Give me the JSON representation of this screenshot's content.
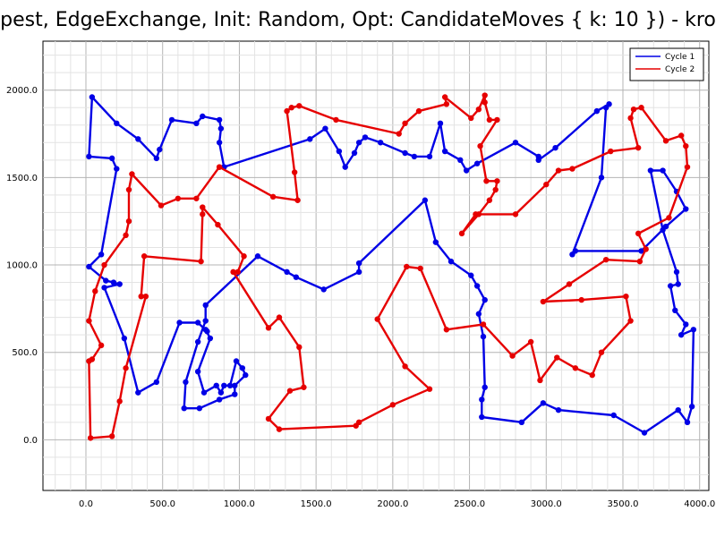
{
  "chart_data": {
    "type": "line",
    "title": "epest, EdgeExchange, Init: Random, Opt: CandidateMoves { k: 10 }) - kroa",
    "xlabel": "",
    "ylabel": "",
    "xlim": [
      -280,
      4060
    ],
    "ylim": [
      -290,
      2280
    ],
    "xticks": [
      0,
      500,
      1000,
      1500,
      2000,
      2500,
      3000,
      3500,
      4000
    ],
    "yticks": [
      0,
      500,
      1000,
      1500,
      2000
    ],
    "xtick_labels": [
      "0.0",
      "500.0",
      "1000.0",
      "1500.0",
      "2000.0",
      "2500.0",
      "3000.0",
      "3500.0",
      "4000.0"
    ],
    "ytick_labels": [
      "0.0",
      "500.0",
      "1000.0",
      "1500.0",
      "2000.0"
    ],
    "grid": true,
    "legend_position": "top-right",
    "series": [
      {
        "name": "Cycle 1",
        "color": "#0000e6",
        "closed": true,
        "points": [
          [
            900,
            1560
          ],
          [
            870,
            1700
          ],
          [
            880,
            1780
          ],
          [
            870,
            1830
          ],
          [
            760,
            1850
          ],
          [
            720,
            1810
          ],
          [
            560,
            1830
          ],
          [
            480,
            1660
          ],
          [
            460,
            1610
          ],
          [
            340,
            1720
          ],
          [
            200,
            1810
          ],
          [
            40,
            1960
          ],
          [
            20,
            1620
          ],
          [
            170,
            1610
          ],
          [
            200,
            1550
          ],
          [
            100,
            1060
          ],
          [
            20,
            990
          ],
          [
            130,
            910
          ],
          [
            180,
            900
          ],
          [
            220,
            890
          ],
          [
            120,
            870
          ],
          [
            250,
            580
          ],
          [
            340,
            270
          ],
          [
            460,
            330
          ],
          [
            610,
            670
          ],
          [
            730,
            670
          ],
          [
            790,
            620
          ],
          [
            780,
            630
          ],
          [
            810,
            580
          ],
          [
            730,
            390
          ],
          [
            770,
            270
          ],
          [
            850,
            310
          ],
          [
            880,
            270
          ],
          [
            900,
            310
          ],
          [
            940,
            310
          ],
          [
            980,
            450
          ],
          [
            1020,
            410
          ],
          [
            1040,
            370
          ],
          [
            970,
            310
          ],
          [
            970,
            260
          ],
          [
            870,
            230
          ],
          [
            740,
            180
          ],
          [
            640,
            180
          ],
          [
            650,
            330
          ],
          [
            730,
            560
          ],
          [
            780,
            680
          ],
          [
            780,
            770
          ],
          [
            1120,
            1050
          ],
          [
            1310,
            960
          ],
          [
            1370,
            930
          ],
          [
            1550,
            860
          ],
          [
            1780,
            960
          ],
          [
            1780,
            1010
          ],
          [
            2210,
            1370
          ],
          [
            2280,
            1130
          ],
          [
            2380,
            1020
          ],
          [
            2510,
            940
          ],
          [
            2550,
            880
          ],
          [
            2600,
            800
          ],
          [
            2560,
            720
          ],
          [
            2590,
            590
          ],
          [
            2600,
            300
          ],
          [
            2580,
            230
          ],
          [
            2580,
            130
          ],
          [
            2840,
            100
          ],
          [
            2980,
            210
          ],
          [
            3080,
            170
          ],
          [
            3440,
            140
          ],
          [
            3640,
            40
          ],
          [
            3860,
            170
          ],
          [
            3920,
            100
          ],
          [
            3950,
            190
          ],
          [
            3960,
            630
          ],
          [
            3880,
            600
          ],
          [
            3910,
            660
          ],
          [
            3840,
            740
          ],
          [
            3810,
            880
          ],
          [
            3860,
            890
          ],
          [
            3850,
            960
          ],
          [
            3760,
            1200
          ],
          [
            3680,
            1540
          ],
          [
            3760,
            1540
          ],
          [
            3850,
            1420
          ],
          [
            3910,
            1320
          ],
          [
            3780,
            1220
          ],
          [
            3620,
            1080
          ],
          [
            3190,
            1080
          ],
          [
            3170,
            1060
          ],
          [
            3360,
            1500
          ],
          [
            3390,
            1900
          ],
          [
            3410,
            1920
          ],
          [
            3330,
            1880
          ],
          [
            3060,
            1670
          ],
          [
            2950,
            1600
          ],
          [
            2950,
            1620
          ],
          [
            2800,
            1700
          ],
          [
            2550,
            1580
          ],
          [
            2480,
            1540
          ],
          [
            2440,
            1600
          ],
          [
            2340,
            1650
          ],
          [
            2310,
            1810
          ],
          [
            2240,
            1620
          ],
          [
            2140,
            1620
          ],
          [
            2080,
            1640
          ],
          [
            1920,
            1700
          ],
          [
            1820,
            1730
          ],
          [
            1780,
            1700
          ],
          [
            1750,
            1640
          ],
          [
            1690,
            1560
          ],
          [
            1650,
            1650
          ],
          [
            1560,
            1780
          ],
          [
            1460,
            1720
          ],
          [
            900,
            1560
          ]
        ]
      },
      {
        "name": "Cycle 2",
        "color": "#e60000",
        "closed": true,
        "points": [
          [
            870,
            1560
          ],
          [
            1220,
            1390
          ],
          [
            1380,
            1370
          ],
          [
            1360,
            1530
          ],
          [
            1310,
            1880
          ],
          [
            1340,
            1900
          ],
          [
            1390,
            1910
          ],
          [
            1630,
            1830
          ],
          [
            2040,
            1750
          ],
          [
            2080,
            1810
          ],
          [
            2170,
            1880
          ],
          [
            2350,
            1920
          ],
          [
            2340,
            1960
          ],
          [
            2510,
            1840
          ],
          [
            2560,
            1890
          ],
          [
            2600,
            1970
          ],
          [
            2600,
            1930
          ],
          [
            2630,
            1830
          ],
          [
            2680,
            1830
          ],
          [
            2570,
            1680
          ],
          [
            2610,
            1480
          ],
          [
            2680,
            1480
          ],
          [
            2670,
            1430
          ],
          [
            2630,
            1370
          ],
          [
            2560,
            1290
          ],
          [
            2450,
            1180
          ],
          [
            2540,
            1290
          ],
          [
            2800,
            1290
          ],
          [
            3000,
            1460
          ],
          [
            3080,
            1540
          ],
          [
            3170,
            1550
          ],
          [
            3420,
            1650
          ],
          [
            3600,
            1670
          ],
          [
            3550,
            1840
          ],
          [
            3570,
            1890
          ],
          [
            3620,
            1900
          ],
          [
            3780,
            1710
          ],
          [
            3880,
            1740
          ],
          [
            3910,
            1680
          ],
          [
            3920,
            1560
          ],
          [
            3800,
            1270
          ],
          [
            3600,
            1180
          ],
          [
            3650,
            1090
          ],
          [
            3610,
            1020
          ],
          [
            3390,
            1030
          ],
          [
            3150,
            890
          ],
          [
            2980,
            790
          ],
          [
            3230,
            800
          ],
          [
            3520,
            820
          ],
          [
            3550,
            680
          ],
          [
            3360,
            500
          ],
          [
            3300,
            370
          ],
          [
            3190,
            410
          ],
          [
            3070,
            470
          ],
          [
            2960,
            340
          ],
          [
            2900,
            560
          ],
          [
            2780,
            480
          ],
          [
            2590,
            660
          ],
          [
            2350,
            630
          ],
          [
            2180,
            980
          ],
          [
            2090,
            990
          ],
          [
            1900,
            690
          ],
          [
            2080,
            420
          ],
          [
            2240,
            290
          ],
          [
            2000,
            200
          ],
          [
            1780,
            100
          ],
          [
            1760,
            80
          ],
          [
            1260,
            60
          ],
          [
            1190,
            120
          ],
          [
            1330,
            280
          ],
          [
            1420,
            300
          ],
          [
            1390,
            530
          ],
          [
            1260,
            700
          ],
          [
            1190,
            640
          ],
          [
            960,
            960
          ],
          [
            990,
            960
          ],
          [
            1030,
            1050
          ],
          [
            860,
            1230
          ],
          [
            760,
            1330
          ],
          [
            760,
            1290
          ],
          [
            750,
            1020
          ],
          [
            380,
            1050
          ],
          [
            360,
            820
          ],
          [
            390,
            820
          ],
          [
            260,
            410
          ],
          [
            220,
            220
          ],
          [
            170,
            20
          ],
          [
            30,
            10
          ],
          [
            20,
            450
          ],
          [
            40,
            460
          ],
          [
            100,
            540
          ],
          [
            20,
            680
          ],
          [
            60,
            850
          ],
          [
            120,
            1000
          ],
          [
            260,
            1170
          ],
          [
            280,
            1250
          ],
          [
            280,
            1430
          ],
          [
            300,
            1520
          ],
          [
            490,
            1340
          ],
          [
            600,
            1380
          ],
          [
            720,
            1380
          ],
          [
            870,
            1560
          ]
        ]
      }
    ]
  }
}
